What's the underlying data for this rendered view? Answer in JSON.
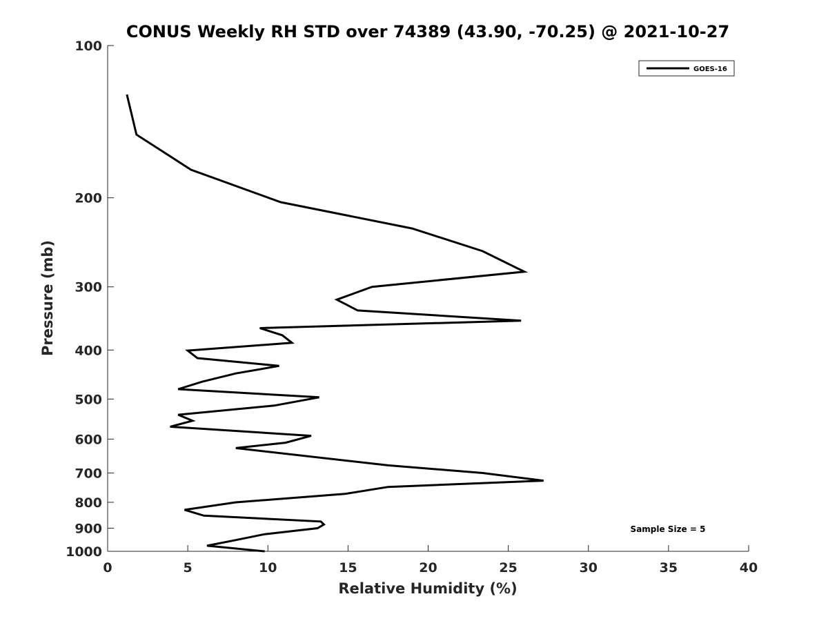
{
  "chart_data": {
    "type": "line",
    "title": "CONUS Weekly RH STD over 74389 (43.90, -70.25) @ 2021-10-27",
    "xlabel": "Relative Humidity (%)",
    "ylabel": "Pressure (mb)",
    "xlim": [
      0,
      40
    ],
    "ylim": [
      100,
      1000
    ],
    "y_scale": "log",
    "y_reversed": true,
    "x_ticks": [
      "0",
      "5",
      "10",
      "15",
      "20",
      "25",
      "30",
      "35",
      "40"
    ],
    "y_ticks": [
      "100",
      "200",
      "300",
      "400",
      "500",
      "600",
      "700",
      "800",
      "900",
      "1000"
    ],
    "grid": false,
    "legend": {
      "placement": "top-right",
      "entries": [
        "GOES-16"
      ]
    },
    "annotation": "Sample Size = 5",
    "series": [
      {
        "name": "GOES-16",
        "color": "#000000",
        "points": [
          [
            1.2,
            125
          ],
          [
            1.8,
            150
          ],
          [
            5.2,
            176
          ],
          [
            10.8,
            204
          ],
          [
            19.0,
            230
          ],
          [
            23.4,
            255
          ],
          [
            26.0,
            280
          ],
          [
            16.5,
            300
          ],
          [
            14.3,
            318
          ],
          [
            15.6,
            334
          ],
          [
            25.8,
            350
          ],
          [
            9.5,
            362
          ],
          [
            10.9,
            374
          ],
          [
            11.5,
            387
          ],
          [
            5.0,
            401
          ],
          [
            5.6,
            415
          ],
          [
            10.7,
            430
          ],
          [
            8.0,
            445
          ],
          [
            5.9,
            462
          ],
          [
            4.4,
            478
          ],
          [
            13.2,
            496
          ],
          [
            10.4,
            515
          ],
          [
            4.4,
            537
          ],
          [
            5.3,
            552
          ],
          [
            3.9,
            567
          ],
          [
            12.7,
            591
          ],
          [
            11.1,
            610
          ],
          [
            8.0,
            625
          ],
          [
            17.5,
            676
          ],
          [
            23.4,
            700
          ],
          [
            27.2,
            725
          ],
          [
            17.5,
            746
          ],
          [
            14.8,
            770
          ],
          [
            8.0,
            800
          ],
          [
            4.8,
            828
          ],
          [
            6.0,
            850
          ],
          [
            13.3,
            873
          ],
          [
            13.5,
            885
          ],
          [
            13.1,
            900
          ],
          [
            9.8,
            925
          ],
          [
            8.0,
            950
          ],
          [
            6.2,
            975
          ],
          [
            9.8,
            1000
          ]
        ]
      }
    ]
  }
}
